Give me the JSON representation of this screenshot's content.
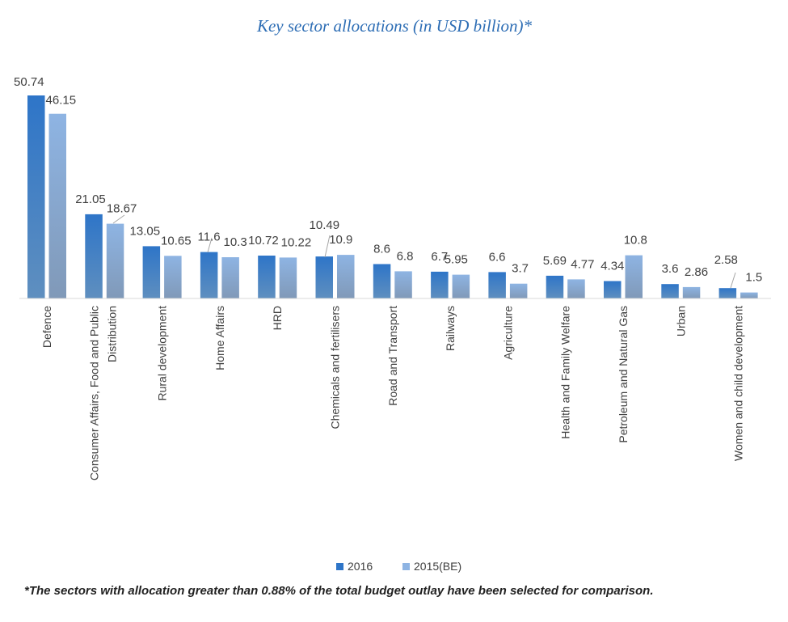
{
  "chart_data": {
    "type": "bar",
    "title": "Key sector allocations (in USD billion)*",
    "categories": [
      "Defence",
      "Consumer Affairs, Food and Public Distribution",
      "Rural development",
      "Home Affairs",
      "HRD",
      "Chemicals and fertilisers",
      "Road and Transport",
      "Railways",
      "Agriculture",
      "Health and Family Welfare",
      "Petroleum and Natural Gas",
      "Urban",
      "Women and child development"
    ],
    "series": [
      {
        "name": "2016",
        "values": [
          50.74,
          21.05,
          13.05,
          11.6,
          10.72,
          10.49,
          8.6,
          6.7,
          6.6,
          5.69,
          4.34,
          3.6,
          2.58
        ]
      },
      {
        "name": "2015(BE)",
        "values": [
          46.15,
          18.67,
          10.65,
          10.3,
          10.22,
          10.9,
          6.8,
          5.95,
          3.7,
          4.77,
          10.8,
          2.86,
          1.5
        ]
      }
    ],
    "ylim": [
      0,
      50.74
    ],
    "grid": false,
    "legend_position": "bottom",
    "colors": [
      "#2e75c8",
      "#8eb4e3"
    ]
  },
  "footnote": "*The sectors with allocation greater than 0.88% of the total budget outlay have been selected for comparison."
}
